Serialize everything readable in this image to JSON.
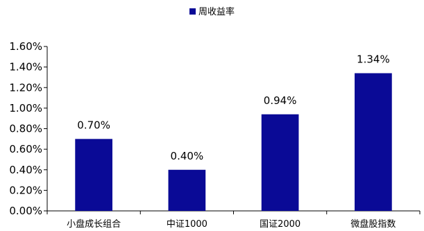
{
  "chart_data": {
    "type": "bar",
    "categories": [
      "小盘成长组合",
      "中证1000",
      "国证2000",
      "微盘股指数"
    ],
    "series": [
      {
        "name": "周收益率",
        "values": [
          0.7,
          0.4,
          0.94,
          1.34
        ],
        "color": "#0a0a96"
      }
    ],
    "data_labels": [
      "0.70%",
      "0.40%",
      "0.94%",
      "1.34%"
    ],
    "ylim": [
      0,
      1.6
    ],
    "y_ticks": [
      0,
      0.2,
      0.4,
      0.6,
      0.8,
      1.0,
      1.2,
      1.4,
      1.6
    ],
    "y_tick_labels": [
      "0.00%",
      "0.20%",
      "0.40%",
      "0.60%",
      "0.80%",
      "1.00%",
      "1.20%",
      "1.40%",
      "1.60%"
    ],
    "legend_position": "top-center",
    "grid": false
  }
}
